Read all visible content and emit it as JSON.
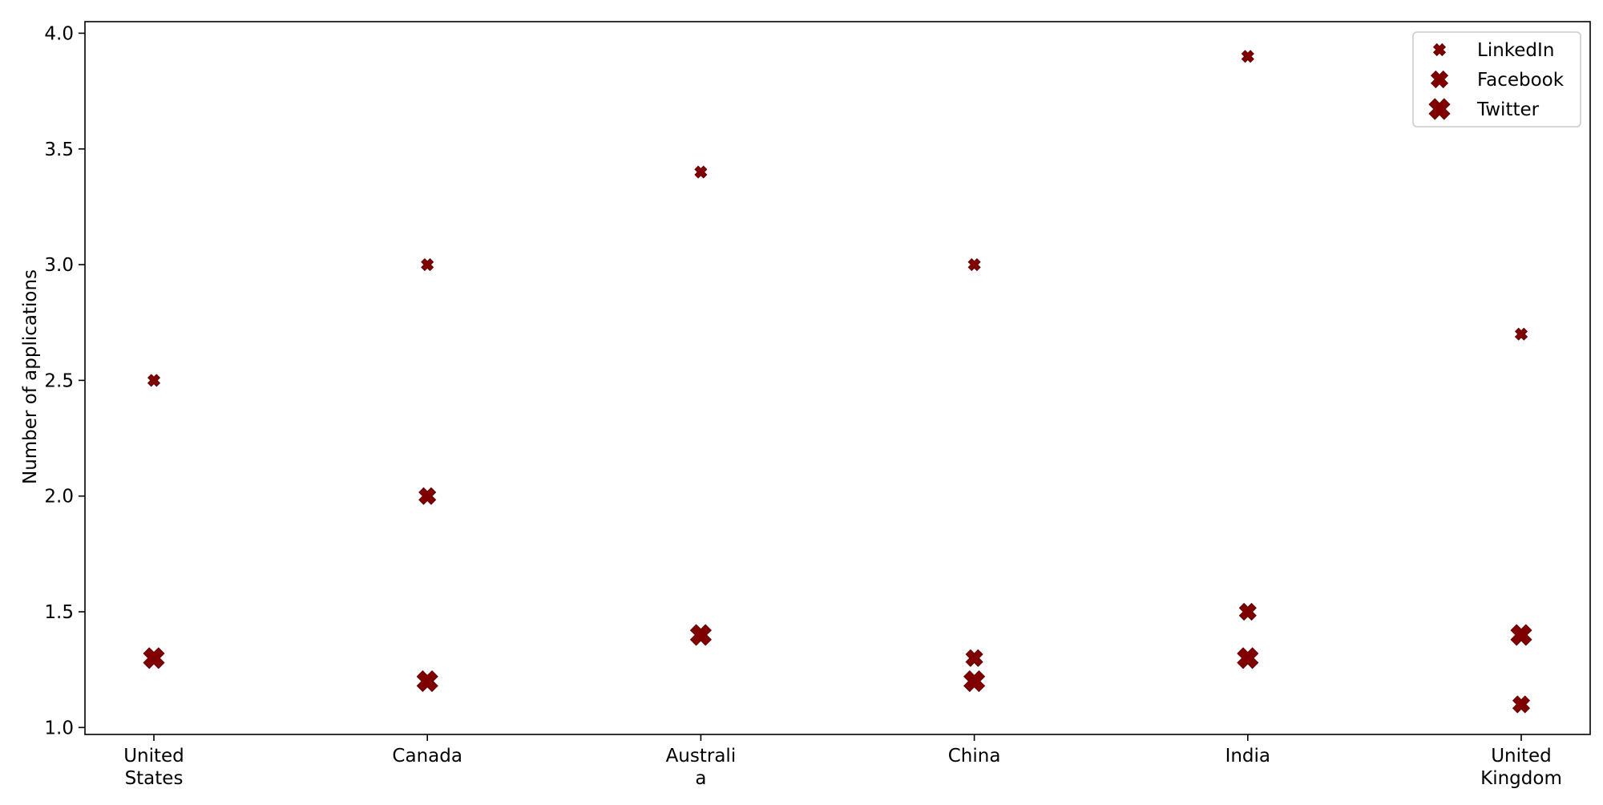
{
  "chart_data": {
    "type": "scatter",
    "title": "",
    "xlabel": "",
    "ylabel": "Number of applications",
    "categories": [
      "United States",
      "Canada",
      "Australia",
      "China",
      "India",
      "United Kingdom"
    ],
    "category_tick_lines": [
      [
        "United",
        "States"
      ],
      [
        "Canada"
      ],
      [
        "Australi",
        "a"
      ],
      [
        "China"
      ],
      [
        "India"
      ],
      [
        "United",
        "Kingdom"
      ]
    ],
    "ylim": [
      0.97,
      4.05
    ],
    "yticks": [
      "1.0",
      "1.5",
      "2.0",
      "2.5",
      "3.0",
      "3.5",
      "4.0"
    ],
    "grid": false,
    "legend_position": "top-right",
    "marker": "x-filled",
    "color": "#800000",
    "series": [
      {
        "name": "LinkedIn",
        "values": [
          2.5,
          3.0,
          3.4,
          3.0,
          3.9,
          2.7
        ],
        "marker_size": "small"
      },
      {
        "name": "Facebook",
        "values": [
          1.3,
          2.0,
          1.4,
          1.3,
          1.5,
          1.1
        ],
        "marker_size": "medium"
      },
      {
        "name": "Twitter",
        "values": [
          1.3,
          1.2,
          1.4,
          1.2,
          1.3,
          1.4
        ],
        "marker_size": "large"
      }
    ]
  }
}
